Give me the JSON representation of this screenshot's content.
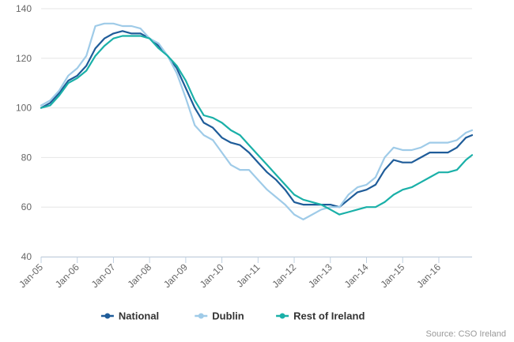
{
  "chart_data": {
    "type": "line",
    "title": "",
    "xlabel": "",
    "ylabel": "",
    "ylim": [
      40,
      140
    ],
    "yticks": [
      40,
      60,
      80,
      100,
      120,
      140
    ],
    "xlim": [
      2005,
      2016.92
    ],
    "xticks": [
      {
        "label": "Jan-05",
        "value": 2005
      },
      {
        "label": "Jan-06",
        "value": 2006
      },
      {
        "label": "Jan-07",
        "value": 2007
      },
      {
        "label": "Jan-08",
        "value": 2008
      },
      {
        "label": "Jan-09",
        "value": 2009
      },
      {
        "label": "Jan-10",
        "value": 2010
      },
      {
        "label": "Jan-11",
        "value": 2011
      },
      {
        "label": "Jan-12",
        "value": 2012
      },
      {
        "label": "Jan-13",
        "value": 2013
      },
      {
        "label": "Jan-14",
        "value": 2014
      },
      {
        "label": "Jan-15",
        "value": 2015
      },
      {
        "label": "Jan-16",
        "value": 2016
      }
    ],
    "grid": true,
    "legend_position": "bottom-center",
    "series": [
      {
        "name": "National",
        "color": "#1f5c99",
        "points": [
          [
            2005.0,
            100
          ],
          [
            2005.25,
            102
          ],
          [
            2005.5,
            106
          ],
          [
            2005.75,
            111
          ],
          [
            2006.0,
            113
          ],
          [
            2006.25,
            117
          ],
          [
            2006.5,
            124
          ],
          [
            2006.75,
            128
          ],
          [
            2007.0,
            130
          ],
          [
            2007.25,
            131
          ],
          [
            2007.5,
            130
          ],
          [
            2007.75,
            130
          ],
          [
            2008.0,
            128
          ],
          [
            2008.25,
            125
          ],
          [
            2008.5,
            121
          ],
          [
            2008.75,
            116
          ],
          [
            2009.0,
            108
          ],
          [
            2009.25,
            100
          ],
          [
            2009.5,
            94
          ],
          [
            2009.75,
            92
          ],
          [
            2010.0,
            88
          ],
          [
            2010.25,
            86
          ],
          [
            2010.5,
            85
          ],
          [
            2010.75,
            82
          ],
          [
            2011.0,
            78
          ],
          [
            2011.25,
            74
          ],
          [
            2011.5,
            71
          ],
          [
            2011.75,
            67
          ],
          [
            2012.0,
            62
          ],
          [
            2012.25,
            61
          ],
          [
            2012.5,
            61
          ],
          [
            2012.75,
            61
          ],
          [
            2013.0,
            61
          ],
          [
            2013.25,
            60
          ],
          [
            2013.5,
            63
          ],
          [
            2013.75,
            66
          ],
          [
            2014.0,
            67
          ],
          [
            2014.25,
            69
          ],
          [
            2014.5,
            75
          ],
          [
            2014.75,
            79
          ],
          [
            2015.0,
            78
          ],
          [
            2015.25,
            78
          ],
          [
            2015.5,
            80
          ],
          [
            2015.75,
            82
          ],
          [
            2016.0,
            82
          ],
          [
            2016.25,
            82
          ],
          [
            2016.5,
            84
          ],
          [
            2016.75,
            88
          ],
          [
            2016.92,
            89
          ]
        ]
      },
      {
        "name": "Dublin",
        "color": "#9fcbe8",
        "points": [
          [
            2005.0,
            101
          ],
          [
            2005.25,
            103
          ],
          [
            2005.5,
            107
          ],
          [
            2005.75,
            113
          ],
          [
            2006.0,
            116
          ],
          [
            2006.25,
            121
          ],
          [
            2006.5,
            133
          ],
          [
            2006.75,
            134
          ],
          [
            2007.0,
            134
          ],
          [
            2007.25,
            133
          ],
          [
            2007.5,
            133
          ],
          [
            2007.75,
            132
          ],
          [
            2008.0,
            128
          ],
          [
            2008.25,
            126
          ],
          [
            2008.5,
            121
          ],
          [
            2008.75,
            114
          ],
          [
            2009.0,
            104
          ],
          [
            2009.25,
            93
          ],
          [
            2009.5,
            89
          ],
          [
            2009.75,
            87
          ],
          [
            2010.0,
            82
          ],
          [
            2010.25,
            77
          ],
          [
            2010.5,
            75
          ],
          [
            2010.75,
            75
          ],
          [
            2011.0,
            71
          ],
          [
            2011.25,
            67
          ],
          [
            2011.5,
            64
          ],
          [
            2011.75,
            61
          ],
          [
            2012.0,
            57
          ],
          [
            2012.25,
            55
          ],
          [
            2012.5,
            57
          ],
          [
            2012.75,
            59
          ],
          [
            2013.0,
            60
          ],
          [
            2013.25,
            60
          ],
          [
            2013.5,
            65
          ],
          [
            2013.75,
            68
          ],
          [
            2014.0,
            69
          ],
          [
            2014.25,
            72
          ],
          [
            2014.5,
            80
          ],
          [
            2014.75,
            84
          ],
          [
            2015.0,
            83
          ],
          [
            2015.25,
            83
          ],
          [
            2015.5,
            84
          ],
          [
            2015.75,
            86
          ],
          [
            2016.0,
            86
          ],
          [
            2016.25,
            86
          ],
          [
            2016.5,
            87
          ],
          [
            2016.75,
            90
          ],
          [
            2016.92,
            91
          ]
        ]
      },
      {
        "name": "Rest of Ireland",
        "color": "#1ab0a8",
        "points": [
          [
            2005.0,
            100
          ],
          [
            2005.25,
            101
          ],
          [
            2005.5,
            105
          ],
          [
            2005.75,
            110
          ],
          [
            2006.0,
            112
          ],
          [
            2006.25,
            115
          ],
          [
            2006.5,
            121
          ],
          [
            2006.75,
            125
          ],
          [
            2007.0,
            128
          ],
          [
            2007.25,
            129
          ],
          [
            2007.5,
            129
          ],
          [
            2007.75,
            129
          ],
          [
            2008.0,
            128
          ],
          [
            2008.25,
            124
          ],
          [
            2008.5,
            121
          ],
          [
            2008.75,
            117
          ],
          [
            2009.0,
            111
          ],
          [
            2009.25,
            103
          ],
          [
            2009.5,
            97
          ],
          [
            2009.75,
            96
          ],
          [
            2010.0,
            94
          ],
          [
            2010.25,
            91
          ],
          [
            2010.5,
            89
          ],
          [
            2010.75,
            85
          ],
          [
            2011.0,
            81
          ],
          [
            2011.25,
            77
          ],
          [
            2011.5,
            73
          ],
          [
            2011.75,
            69
          ],
          [
            2012.0,
            65
          ],
          [
            2012.25,
            63
          ],
          [
            2012.5,
            62
          ],
          [
            2012.75,
            61
          ],
          [
            2013.0,
            59
          ],
          [
            2013.25,
            57
          ],
          [
            2013.5,
            58
          ],
          [
            2013.75,
            59
          ],
          [
            2014.0,
            60
          ],
          [
            2014.25,
            60
          ],
          [
            2014.5,
            62
          ],
          [
            2014.75,
            65
          ],
          [
            2015.0,
            67
          ],
          [
            2015.25,
            68
          ],
          [
            2015.5,
            70
          ],
          [
            2015.75,
            72
          ],
          [
            2016.0,
            74
          ],
          [
            2016.25,
            74
          ],
          [
            2016.5,
            75
          ],
          [
            2016.75,
            79
          ],
          [
            2016.92,
            81
          ]
        ]
      }
    ],
    "source": "Source: CSO Ireland"
  }
}
